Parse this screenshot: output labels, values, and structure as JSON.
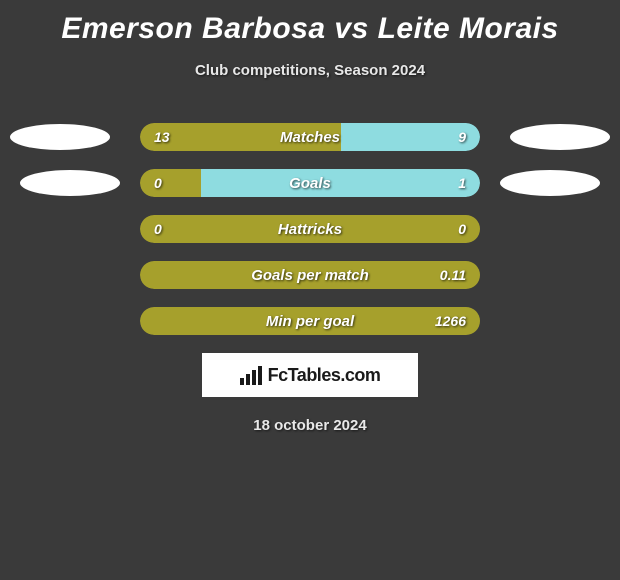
{
  "title": "Emerson Barbosa vs Leite Morais",
  "subtitle": "Club competitions, Season 2024",
  "date": "18 october 2024",
  "logo": "FcTables.com",
  "colors": {
    "olive": "#a6a02c",
    "cyan": "#8edce0",
    "background": "#3a3a3a"
  },
  "rows": [
    {
      "label": "Matches",
      "left_value": "13",
      "right_value": "9",
      "show_ellipses": true,
      "fills": [
        {
          "side": "left",
          "width_pct": 59,
          "color": "#a6a02c"
        },
        {
          "side": "right",
          "width_pct": 41,
          "color": "#8edce0"
        }
      ]
    },
    {
      "label": "Goals",
      "left_value": "0",
      "right_value": "1",
      "show_ellipses": true,
      "ellipse_offset": true,
      "fills": [
        {
          "side": "left",
          "width_pct": 18,
          "color": "#a6a02c"
        },
        {
          "side": "right",
          "width_pct": 82,
          "color": "#8edce0"
        }
      ]
    },
    {
      "label": "Hattricks",
      "left_value": "0",
      "right_value": "0",
      "show_ellipses": false,
      "fills": [
        {
          "side": "left",
          "width_pct": 100,
          "color": "#a6a02c"
        }
      ]
    },
    {
      "label": "Goals per match",
      "left_value": "",
      "right_value": "0.11",
      "show_ellipses": false,
      "fills": [
        {
          "side": "left",
          "width_pct": 100,
          "color": "#a6a02c"
        }
      ]
    },
    {
      "label": "Min per goal",
      "left_value": "",
      "right_value": "1266",
      "show_ellipses": false,
      "fills": [
        {
          "side": "left",
          "width_pct": 100,
          "color": "#a6a02c"
        }
      ]
    }
  ]
}
